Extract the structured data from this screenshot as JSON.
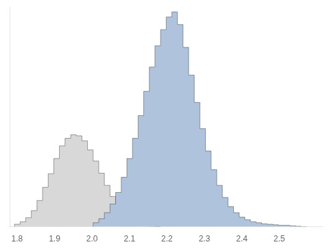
{
  "chart_data": {
    "type": "histogram",
    "series": [
      {
        "color": "#d8d8d8",
        "bins": [
          1.793,
          1.808,
          1.823,
          1.838,
          1.853,
          1.868,
          1.883,
          1.898,
          1.913,
          1.928,
          1.943,
          1.958,
          1.973,
          1.988,
          2.003,
          2.018,
          2.033,
          2.048,
          2.063,
          2.078,
          2.093,
          2.108,
          2.123,
          2.138,
          2.153,
          2.168,
          2.183
        ],
        "values": [
          2,
          5,
          10,
          18,
          32,
          52,
          78,
          105,
          135,
          160,
          175,
          182,
          180,
          170,
          152,
          130,
          106,
          82,
          60,
          42,
          28,
          17,
          10,
          5,
          2,
          1
        ]
      },
      {
        "color": "#afc3dc",
        "bins": [
          2.003,
          2.018,
          2.033,
          2.048,
          2.063,
          2.078,
          2.093,
          2.108,
          2.123,
          2.138,
          2.153,
          2.168,
          2.183,
          2.198,
          2.213,
          2.228,
          2.243,
          2.258,
          2.273,
          2.288,
          2.303,
          2.318,
          2.333,
          2.348,
          2.363,
          2.378,
          2.393,
          2.408,
          2.423,
          2.438,
          2.453,
          2.468,
          2.483,
          2.498,
          2.513,
          2.528,
          2.543,
          2.558,
          2.573
        ],
        "values": [
          3,
          8,
          16,
          28,
          45,
          68,
          98,
          135,
          175,
          220,
          268,
          316,
          358,
          390,
          415,
          425,
          400,
          355,
          300,
          246,
          194,
          150,
          113,
          82,
          58,
          40,
          28,
          19,
          14,
          10,
          8,
          6,
          5,
          4,
          3,
          3,
          2,
          1
        ]
      }
    ],
    "xlim": [
      1.78,
      2.615
    ],
    "ylim": [
      0,
      435
    ],
    "xticks": [
      {
        "value": 1.8,
        "label": "1.8"
      },
      {
        "value": 1.9,
        "label": "1.9"
      },
      {
        "value": 2,
        "label": "2.0"
      },
      {
        "value": 2.1,
        "label": "2.1"
      },
      {
        "value": 2.2,
        "label": "2.2"
      },
      {
        "value": 2.3,
        "label": "2.3"
      },
      {
        "value": 2.4,
        "label": "2.4"
      },
      {
        "value": 2.5,
        "label": "2.5"
      }
    ],
    "grid": false,
    "tick_labels": "x"
  }
}
